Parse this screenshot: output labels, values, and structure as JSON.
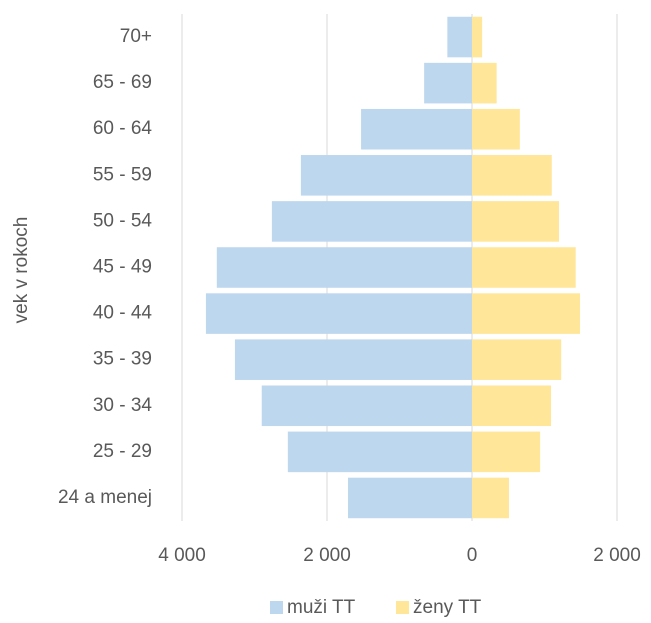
{
  "chart_data": {
    "type": "bar",
    "orientation": "horizontal",
    "stacked": true,
    "y_label": "vek v rokoch",
    "categories": [
      "24 a menej",
      "25 - 29",
      "30 - 34",
      "35 - 39",
      "40 - 44",
      "45 - 49",
      "50 - 54",
      "55 - 59",
      "60 - 64",
      "65 - 69",
      "70+"
    ],
    "series": [
      {
        "name": "muži TT",
        "color": "#bdd7ee",
        "values": [
          -1710,
          -2540,
          -2900,
          -3270,
          -3670,
          -3520,
          -2760,
          -2360,
          -1530,
          -660,
          -340
        ]
      },
      {
        "name": "ženy TT",
        "color": "#ffe699",
        "values": [
          510,
          940,
          1090,
          1230,
          1490,
          1430,
          1200,
          1100,
          660,
          340,
          140
        ]
      }
    ],
    "xlim": [
      -4000,
      2000
    ],
    "xticks": [
      {
        "value": -4000,
        "label": "4 000"
      },
      {
        "value": -2000,
        "label": "2 000"
      },
      0,
      {
        "value": 2000,
        "label": "2 000"
      }
    ],
    "grid": true,
    "legend": "bottom"
  }
}
